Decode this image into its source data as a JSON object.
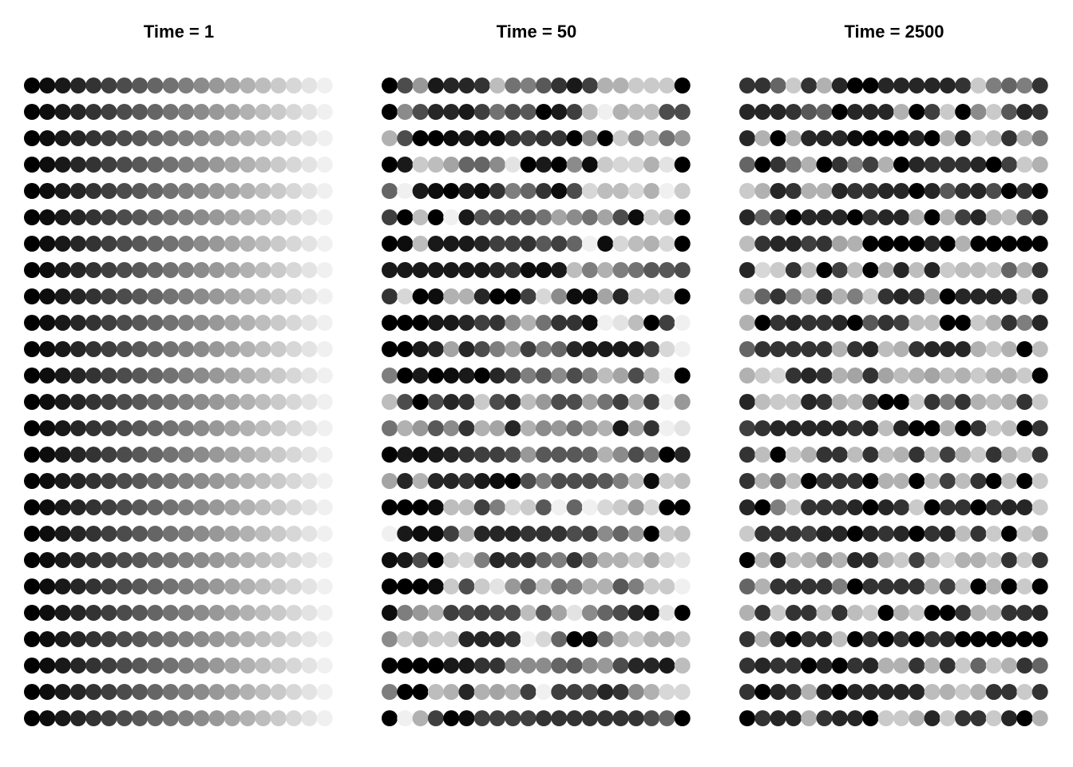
{
  "chart_data": [
    {
      "type": "scatter",
      "title": "Time = 1",
      "rows": 25,
      "columns": 20,
      "grays": [
        "00000000000000000000000000000000000000000000000000000000000000000000000000000000000000000000000000000000000000000000000000000000000000000000000000000000000000000000000000000000000000000000000000000000",
        "00000000000000000000000000000000000000000000000000000000000000000000000000000000000000000000000000000000000000000000000000000000000000000000000000000000000000000000000000000000000000000000000000000000"
      ],
      "levels": [
        0,
        1,
        2,
        3,
        4,
        5,
        6,
        7,
        8,
        9,
        10,
        11,
        12,
        13,
        14,
        15,
        16,
        17,
        18,
        19
      ],
      "shade_rows": [
        "0123456789ABCDEFGHIJ",
        "0123456789ABCDEFGHIJ",
        "0123456789ABCDEFGHIJ",
        "0123456789ABCDEFGHIJ",
        "0123456789ABCDEFGHIJ",
        "0123456789ABCDEFGHIJ",
        "0123456789ABCDEFGHIJ",
        "0123456789ABCDEFGHIJ",
        "0123456789ABCDEFGHIJ",
        "0123456789ABCDEFGHIJ",
        "0123456789ABCDEFGHIJ",
        "0123456789ABCDEFGHIJ",
        "0123456789ABCDEFGHIJ",
        "0123456789ABCDEFGHIJ",
        "0123456789ABCDEFGHIJ",
        "0123456789ABCDEFGHIJ",
        "0123456789ABCDEFGHIJ",
        "0123456789ABCDEFGHIJ",
        "0123456789ABCDEFGHIJ",
        "0123456789ABCDEFGHIJ",
        "0123456789ABCDEFGHIJ",
        "0123456789ABCDEFGHIJ",
        "0123456789ABCDEFGHIJ",
        "0123456789ABCDEFGHIJ",
        "0123456789ABCDEFGHIJ"
      ]
    },
    {
      "type": "scatter",
      "title": "Time = 50",
      "rows": 25,
      "columns": 20,
      "levels": [
        0,
        1,
        2,
        3,
        4,
        5,
        6,
        7,
        8,
        9,
        10,
        11,
        12,
        13,
        14,
        15,
        16,
        17,
        18,
        19
      ],
      "shade_rows": [
        "06C2334F9A7425EEGGG0J",
        "0B63325967025FJEFF66",
        "E600121145440B0GBF9C",
        "02GFD88BI020B1GHHEI0",
        "8J210214A8416HFFHEJG",
        "50F0J276779DB9D61GF",
        "01F2223554758J1HFEH",
        "222222234112FAEA9776",
        "4H01EE3005HB11D3GGH",
        "00022354BE9441JIF05J",
        "0023D36AD5A8322225HJ0",
        "A02012035A7B6AFD6EJ0E",
        "F60634G64FC66D95E5JC",
        "9EC7B4ED3EBC9CE2D4JI",
        "021234556C7778EB6A03",
        "D3E3342106A6667AF1GF",
        "0001FF5AHG7J8JHGCH",
        "J2115E33344465B8C0GFD",
        "1260GHA3448A49EEGDHI",
        "0001G6GIC8F9AEE7AGGJB",
        "1ACE56566F7DIB8631I0IJ",
        "BGEGG3334JH8019EGEEG5J",
        "00002244BBB87BC6332FG",
        "A00FE3EDE5J55634BEHHI",
        "0JE5015555444444468OB"
      ]
    },
    {
      "type": "scatter",
      "title": "Time = 2500",
      "rows": 25,
      "columns": 20,
      "levels": [
        0,
        1,
        2,
        3,
        4,
        5,
        6,
        7,
        8,
        9,
        10,
        11,
        12,
        13,
        14,
        15,
        16,
        17,
        18,
        19
      ],
      "shade_rows": [
        "448G4E300333334GA8A44",
        "3334780333E05G0BG734",
        "3E0E333100030E3GF4EA",
        "8049E04A5E03444305GE",
        "GE34EE34433037436040",
        "38403330433E0E53EF74",
        "F43354DE000030E0000",
        "3HG4F05F0E3F3GFFG8E4",
        "F84AE4EAG434D03333G3",
        "E0434430745FF00GE4A34",
        "844444E43FE4333EGE0F4",
        "EGH434ED4DFEDFEGEEG0",
        "3FGG34EF400G4A4EFE4GF",
        "543333343F300E04GF04G",
        "4F0GE44F4FE4F5EG4EG4",
        "4E8F04440EE0F5F40F0G",
        "30AG4443034G0440433G",
        "G4445330343043F4G0GE3",
        "0E3FEAE34EG5EHEEG4G4",
        "8E4444A04444E5G0E0G0",
        "E4G44F4FG0EG004EF443",
        "4E3043F040404300000",
        "434403043EE4E4G8GE48",
        "4034E3033333FEGE44G4",
        "0433E4330GGE3G44G30E"
      ]
    }
  ]
}
